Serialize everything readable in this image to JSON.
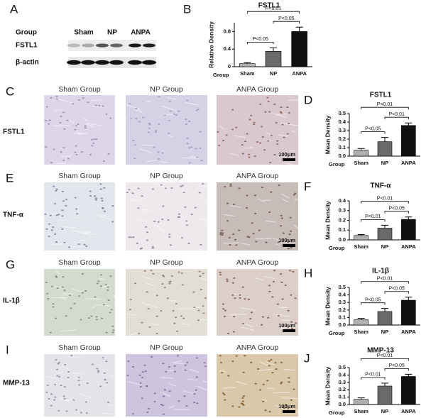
{
  "panels": [
    "A",
    "B",
    "C",
    "D",
    "E",
    "F",
    "G",
    "H",
    "I",
    "J"
  ],
  "blot": {
    "group_label": "Group",
    "groups": [
      "Sham",
      "NP",
      "ANPA"
    ],
    "rows": [
      "FSTL1",
      "β-actin"
    ]
  },
  "micrographs": [
    {
      "label": "FSTL1",
      "columns": [
        "Sham Group",
        "NP Group",
        "ANPA  Group"
      ],
      "scale_bar": "100μm"
    },
    {
      "label": "TNF-α",
      "columns": [
        "Sham Group",
        "NP Group",
        "ANPA  Group"
      ],
      "scale_bar": "100μm"
    },
    {
      "label": "IL-1β",
      "columns": [
        "Sham Group",
        "NP Group",
        "ANPA  Group"
      ],
      "scale_bar": "100μm"
    },
    {
      "label": "MMP-13",
      "columns": [
        "Sham Group",
        "NP Group",
        "ANPA  Group"
      ],
      "scale_bar": "100μm"
    }
  ],
  "chart_data": [
    {
      "type": "bar",
      "title": "FSTL1",
      "y_label": "Relative Density",
      "x_label": "Group",
      "categories": [
        "Sham",
        "NP",
        "ANPA"
      ],
      "values": [
        0.07,
        0.35,
        0.8
      ],
      "errors": [
        0.02,
        0.08,
        0.1
      ],
      "colors": [
        "#b0b0b0",
        "#6a6a6a",
        "#111111"
      ],
      "ylim": [
        0,
        1.0
      ],
      "yticks": [
        0,
        0.4,
        0.8
      ],
      "annotations": [
        "P<0.05",
        "P<0.01",
        "P<0.05"
      ]
    },
    {
      "type": "bar",
      "title": "FSTL1",
      "y_label": "Mean Density",
      "x_label": "Group",
      "categories": [
        "Sham",
        "NP",
        "ANPA"
      ],
      "values": [
        0.07,
        0.17,
        0.36
      ],
      "errors": [
        0.02,
        0.05,
        0.03
      ],
      "colors": [
        "#b0b0b0",
        "#6a6a6a",
        "#111111"
      ],
      "ylim": [
        0,
        0.5
      ],
      "yticks": [
        {
          "value": 0,
          "label": "0.0"
        },
        0.1,
        0.2,
        0.3,
        0.4,
        0.5
      ],
      "annotations": [
        "P<0.05",
        "P<0.01",
        "P<0.01"
      ]
    },
    {
      "type": "bar",
      "title": "TNF-α",
      "y_label": "Mean Density",
      "x_label": "Group",
      "categories": [
        "Sham",
        "NP",
        "ANPA"
      ],
      "values": [
        0.045,
        0.12,
        0.21
      ],
      "errors": [
        0.01,
        0.03,
        0.025
      ],
      "colors": [
        "#b0b0b0",
        "#6a6a6a",
        "#111111"
      ],
      "ylim": [
        0,
        0.4
      ],
      "yticks": [
        {
          "value": 0,
          "label": "0.0"
        },
        0.1,
        0.2,
        0.3,
        0.4
      ],
      "annotations": [
        "P<0.01",
        "P<0.01",
        "P<0.05"
      ]
    },
    {
      "type": "bar",
      "title": "IL-1β",
      "y_label": "Mean Density",
      "x_label": "Group",
      "categories": [
        "Sham",
        "NP",
        "ANPA"
      ],
      "values": [
        0.07,
        0.18,
        0.33
      ],
      "errors": [
        0.02,
        0.04,
        0.04
      ],
      "colors": [
        "#b0b0b0",
        "#6a6a6a",
        "#111111"
      ],
      "ylim": [
        0,
        0.5
      ],
      "yticks": [
        {
          "value": 0,
          "label": "0.0"
        },
        0.1,
        0.2,
        0.3,
        0.4,
        0.5
      ],
      "annotations": [
        "P<0.05",
        "P<0.01",
        "P<0.05"
      ]
    },
    {
      "type": "bar",
      "title": "MMP-13",
      "y_label": "Mean Density",
      "x_label": "Group",
      "categories": [
        "Sham",
        "NP",
        "ANPA"
      ],
      "values": [
        0.07,
        0.25,
        0.38
      ],
      "errors": [
        0.02,
        0.04,
        0.03
      ],
      "colors": [
        "#b0b0b0",
        "#6a6a6a",
        "#111111"
      ],
      "ylim": [
        0,
        0.5
      ],
      "yticks": [
        {
          "value": 0,
          "label": "0.0"
        },
        0.1,
        0.2,
        0.3,
        0.4,
        0.5
      ],
      "annotations": [
        "P<0.01",
        "P<0.01",
        "P<0.05"
      ]
    }
  ]
}
